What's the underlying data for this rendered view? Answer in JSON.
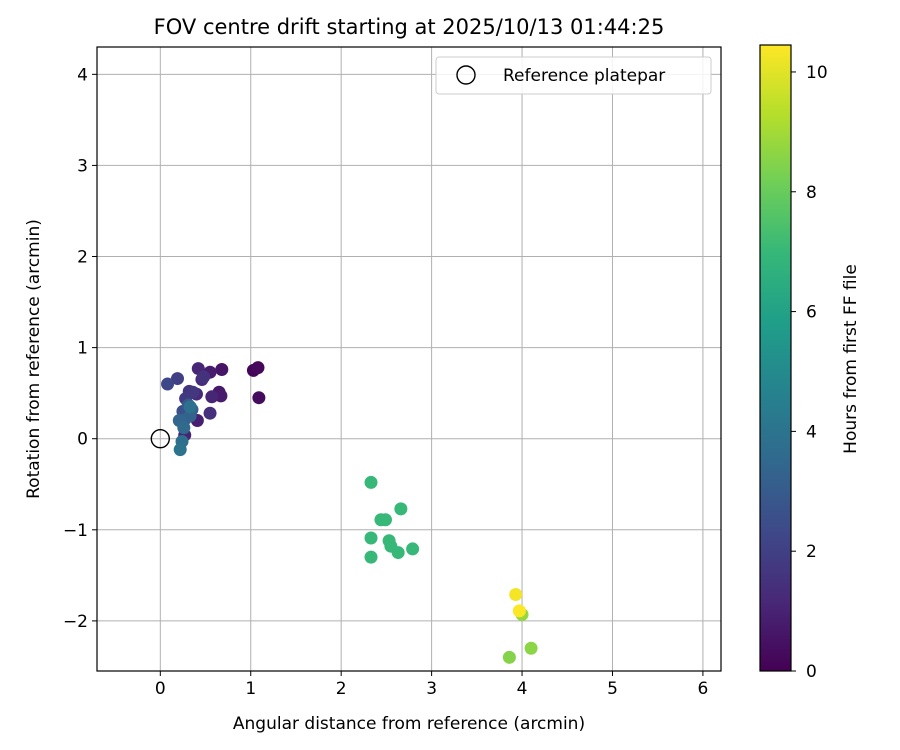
{
  "chart_data": {
    "type": "scatter",
    "title": "FOV centre drift starting at 2025/10/13 01:44:25",
    "xlabel": "Angular distance from reference (arcmin)",
    "ylabel": "Rotation from reference (arcmin)",
    "xlim": [
      -0.7,
      6.2
    ],
    "ylim": [
      -2.55,
      4.3
    ],
    "xticks": [
      0,
      1,
      2,
      3,
      4,
      5,
      6
    ],
    "xtick_labels": [
      "0",
      "1",
      "2",
      "3",
      "4",
      "5",
      "6"
    ],
    "yticks": [
      -2,
      -1,
      0,
      1,
      2,
      3,
      4
    ],
    "ytick_labels": [
      "−2",
      "−1",
      "0",
      "1",
      "2",
      "3",
      "4"
    ],
    "grid": true,
    "legend": {
      "position": "top-right",
      "entries": [
        "Reference platepar"
      ]
    },
    "reference_point": {
      "x": 0,
      "y": 0,
      "label": "Reference platepar"
    },
    "colorbar": {
      "label": "Hours from first FF file",
      "range": [
        0,
        10.45
      ],
      "ticks": [
        0,
        2,
        4,
        6,
        8,
        10
      ],
      "tick_labels": [
        "0",
        "2",
        "4",
        "6",
        "8",
        "10"
      ],
      "colormap": "viridis",
      "colors": [
        "#440154",
        "#482878",
        "#3e4989",
        "#31688e",
        "#26828e",
        "#1f9e89",
        "#35b779",
        "#6ece58",
        "#b5de2b",
        "#fde725"
      ]
    },
    "points": [
      {
        "x": 1.03,
        "y": 0.75,
        "hours": 0.1
      },
      {
        "x": 1.08,
        "y": 0.78,
        "hours": 0.2
      },
      {
        "x": 1.09,
        "y": 0.45,
        "hours": 0.3
      },
      {
        "x": 0.68,
        "y": 0.76,
        "hours": 0.6
      },
      {
        "x": 0.65,
        "y": 0.51,
        "hours": 0.7
      },
      {
        "x": 0.67,
        "y": 0.47,
        "hours": 0.8
      },
      {
        "x": 0.55,
        "y": 0.73,
        "hours": 0.8
      },
      {
        "x": 0.41,
        "y": 0.2,
        "hours": 0.9
      },
      {
        "x": 0.27,
        "y": 0.04,
        "hours": 1.0
      },
      {
        "x": 0.42,
        "y": 0.77,
        "hours": 1.1
      },
      {
        "x": 0.57,
        "y": 0.46,
        "hours": 1.1
      },
      {
        "x": 0.4,
        "y": 0.49,
        "hours": 1.2
      },
      {
        "x": 0.46,
        "y": 0.65,
        "hours": 1.3
      },
      {
        "x": 0.55,
        "y": 0.28,
        "hours": 1.4
      },
      {
        "x": 0.48,
        "y": 0.68,
        "hours": 1.5
      },
      {
        "x": 0.32,
        "y": 0.52,
        "hours": 1.6
      },
      {
        "x": 0.36,
        "y": 0.51,
        "hours": 1.7
      },
      {
        "x": 0.28,
        "y": 0.44,
        "hours": 1.8
      },
      {
        "x": 0.19,
        "y": 0.66,
        "hours": 2.0
      },
      {
        "x": 0.08,
        "y": 0.6,
        "hours": 2.3
      },
      {
        "x": 0.25,
        "y": 0.3,
        "hours": 2.6
      },
      {
        "x": 0.31,
        "y": 0.37,
        "hours": 2.9
      },
      {
        "x": 0.35,
        "y": 0.32,
        "hours": 3.1
      },
      {
        "x": 0.27,
        "y": 0.21,
        "hours": 3.2
      },
      {
        "x": 0.33,
        "y": 0.25,
        "hours": 3.3
      },
      {
        "x": 0.21,
        "y": 0.2,
        "hours": 3.4
      },
      {
        "x": 0.26,
        "y": 0.12,
        "hours": 3.6
      },
      {
        "x": 0.24,
        "y": -0.03,
        "hours": 3.8
      },
      {
        "x": 0.22,
        "y": -0.12,
        "hours": 4.0
      },
      {
        "x": 0.33,
        "y": 0.35,
        "hours": 3.9
      },
      {
        "x": 2.33,
        "y": -0.48,
        "hours": 7.0
      },
      {
        "x": 2.66,
        "y": -0.77,
        "hours": 7.0
      },
      {
        "x": 2.44,
        "y": -0.89,
        "hours": 7.0
      },
      {
        "x": 2.49,
        "y": -0.89,
        "hours": 7.0
      },
      {
        "x": 2.33,
        "y": -1.09,
        "hours": 7.0
      },
      {
        "x": 2.53,
        "y": -1.12,
        "hours": 7.0
      },
      {
        "x": 2.55,
        "y": -1.18,
        "hours": 7.0
      },
      {
        "x": 2.63,
        "y": -1.25,
        "hours": 7.0
      },
      {
        "x": 2.79,
        "y": -1.21,
        "hours": 7.0
      },
      {
        "x": 2.33,
        "y": -1.3,
        "hours": 7.0
      },
      {
        "x": 3.86,
        "y": -2.4,
        "hours": 8.5
      },
      {
        "x": 4.1,
        "y": -2.3,
        "hours": 8.6
      },
      {
        "x": 4.0,
        "y": -1.93,
        "hours": 8.8
      },
      {
        "x": 3.93,
        "y": -1.71,
        "hours": 10.3
      },
      {
        "x": 3.97,
        "y": -1.89,
        "hours": 10.4
      }
    ]
  }
}
